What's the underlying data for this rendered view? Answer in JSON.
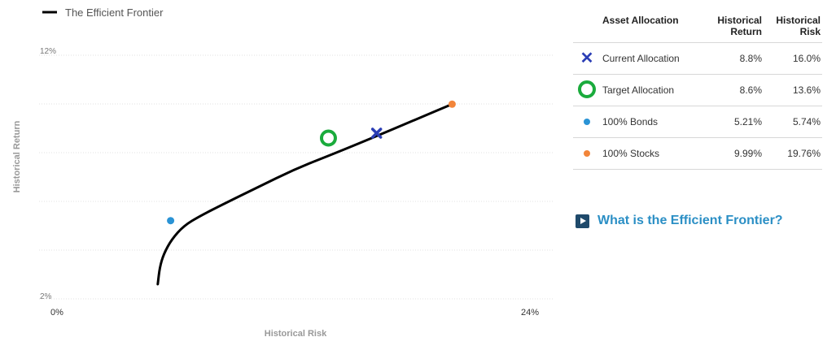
{
  "legend": {
    "label": "The Efficient Frontier"
  },
  "chart_data": {
    "type": "scatter",
    "xlabel": "Historical Risk",
    "ylabel": "Historical Return",
    "xlim": [
      0,
      24
    ],
    "ylim": [
      2,
      12
    ],
    "x_ticks": [
      "0%",
      "24%"
    ],
    "y_ticks": [
      "12%",
      "2%"
    ],
    "grid": true,
    "legend_position": "top-left",
    "series": [
      {
        "name": "The Efficient Frontier",
        "kind": "line",
        "color": "#000000",
        "x": [
          5.1,
          5.2,
          5.4,
          5.8,
          6.4,
          7.2,
          8.4,
          10.0,
          12.0,
          14.0,
          16.2,
          18.2,
          19.76
        ],
        "y": [
          2.6,
          3.3,
          3.85,
          4.45,
          5.0,
          5.4,
          5.9,
          6.55,
          7.35,
          8.0,
          8.75,
          9.45,
          9.99
        ]
      }
    ],
    "points": [
      {
        "name": "Current Allocation",
        "marker": "x",
        "color": "#2b3eb5",
        "x": 16.0,
        "y": 8.8
      },
      {
        "name": "Target Allocation",
        "marker": "ring",
        "color": "#1aab3c",
        "x": 13.6,
        "y": 8.6
      },
      {
        "name": "100% Bonds",
        "marker": "dot",
        "color": "#2a93d5",
        "x": 5.74,
        "y": 5.21
      },
      {
        "name": "100% Stocks",
        "marker": "dot",
        "color": "#f2853a",
        "x": 19.76,
        "y": 9.99
      }
    ]
  },
  "table": {
    "headers": {
      "asset_allocation": "Asset Allocation",
      "historical_return": "Historical Return",
      "historical_risk": "Historical Risk"
    },
    "rows": [
      {
        "label": "Current Allocation",
        "return": "8.8%",
        "risk": "16.0%",
        "marker": "x",
        "color": "#2b3eb5"
      },
      {
        "label": "Target Allocation",
        "return": "8.6%",
        "risk": "13.6%",
        "marker": "ring",
        "color": "#1aab3c"
      },
      {
        "label": "100% Bonds",
        "return": "5.21%",
        "risk": "5.74%",
        "marker": "dot",
        "color": "#2a93d5"
      },
      {
        "label": "100% Stocks",
        "return": "9.99%",
        "risk": "19.76%",
        "marker": "dot",
        "color": "#f2853a"
      }
    ]
  },
  "faq_link": {
    "label": "What is the Efficient Frontier?",
    "icon": "play-icon"
  }
}
